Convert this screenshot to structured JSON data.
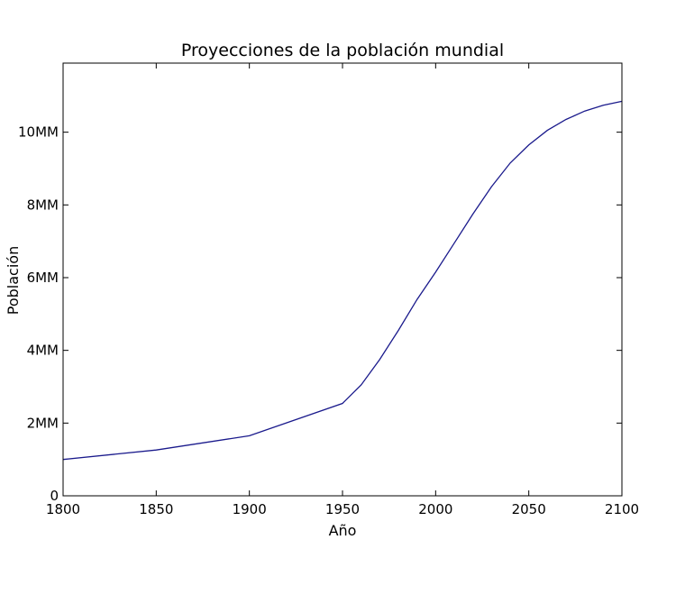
{
  "chart_data": {
    "type": "line",
    "title": "Proyecciones de la población mundial",
    "xlabel": "Año",
    "ylabel": "Población",
    "xlim": [
      1800,
      2100
    ],
    "ylim": [
      0,
      11900000000
    ],
    "grid": false,
    "x_ticks": [
      {
        "value": 1800,
        "label": "1800"
      },
      {
        "value": 1850,
        "label": "1850"
      },
      {
        "value": 1900,
        "label": "1900"
      },
      {
        "value": 1950,
        "label": "1950"
      },
      {
        "value": 2000,
        "label": "2000"
      },
      {
        "value": 2050,
        "label": "2050"
      },
      {
        "value": 2100,
        "label": "2100"
      }
    ],
    "y_ticks": [
      {
        "value": 0,
        "label": "0"
      },
      {
        "value": 2000000000,
        "label": "2MM"
      },
      {
        "value": 4000000000,
        "label": "4MM"
      },
      {
        "value": 6000000000,
        "label": "6MM"
      },
      {
        "value": 8000000000,
        "label": "8MM"
      },
      {
        "value": 10000000000,
        "label": "10MM"
      }
    ],
    "series": [
      {
        "color": "#1a1a8c",
        "x": [
          1800,
          1850,
          1900,
          1950,
          1960,
          1970,
          1980,
          1990,
          2000,
          2010,
          2020,
          2030,
          2040,
          2050,
          2060,
          2070,
          2080,
          2090,
          2100
        ],
        "y": [
          1000000000,
          1260000000,
          1650000000,
          2540000000,
          3050000000,
          3750000000,
          4550000000,
          5400000000,
          6150000000,
          6950000000,
          7750000000,
          8500000000,
          9150000000,
          9650000000,
          10050000000,
          10350000000,
          10580000000,
          10740000000,
          10850000000
        ]
      }
    ]
  }
}
